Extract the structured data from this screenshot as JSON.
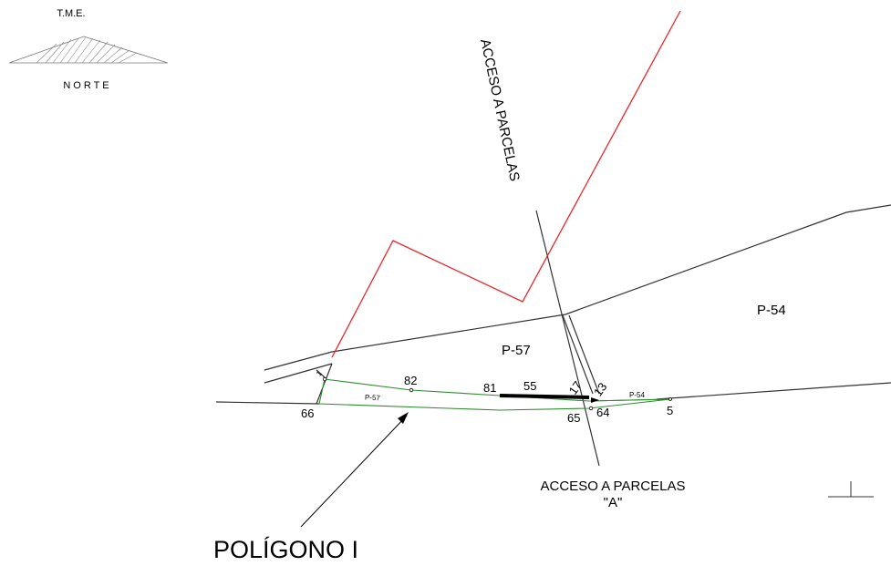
{
  "logo": {
    "top_text": "T.M.E.",
    "bottom_text": "NORTE"
  },
  "parcels": {
    "p57": "P-57",
    "p54": "P-54",
    "p57_small": "P-57",
    "p54_small": "P-54"
  },
  "points": {
    "p66": "66",
    "p82": "82",
    "p81": "81",
    "p55": "55",
    "p17": "17",
    "p13": "13",
    "p65": "65",
    "p64": "64",
    "p5": "5",
    "p1": "1"
  },
  "access": {
    "top_label": "ACCESO A PARCELAS",
    "bottom_label": "ACCESO A PARCELAS",
    "bottom_sub": "\"A\""
  },
  "polygon": {
    "label": "POLÍGONO I"
  },
  "colors": {
    "boundary_red": "#e8262a",
    "parcel_green": "#2e8b2e",
    "road_black": "#333333"
  }
}
